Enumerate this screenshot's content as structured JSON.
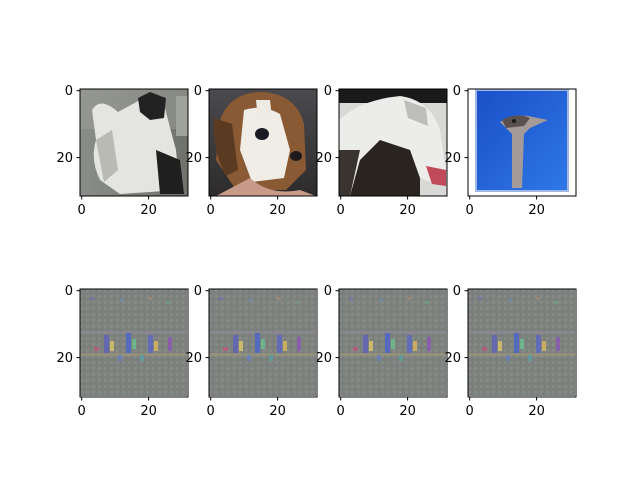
{
  "chart_data": [
    {
      "type": "heatmap",
      "row": 0,
      "col": 0,
      "image": "photo",
      "subject": "cat",
      "xticks": [
        0,
        20
      ],
      "yticks": [
        0,
        20
      ],
      "xlim": [
        -0.5,
        31.5
      ],
      "ylim": [
        31.5,
        -0.5
      ]
    },
    {
      "type": "heatmap",
      "row": 0,
      "col": 1,
      "image": "photo",
      "subject": "dog",
      "xticks": [
        0,
        20
      ],
      "yticks": [
        0,
        20
      ],
      "xlim": [
        -0.5,
        31.5
      ],
      "ylim": [
        31.5,
        -0.5
      ]
    },
    {
      "type": "heatmap",
      "row": 0,
      "col": 2,
      "image": "photo",
      "subject": "horse",
      "xticks": [
        0,
        20
      ],
      "yticks": [
        0,
        20
      ],
      "xlim": [
        -0.5,
        31.5
      ],
      "ylim": [
        31.5,
        -0.5
      ]
    },
    {
      "type": "heatmap",
      "row": 0,
      "col": 3,
      "image": "photo",
      "subject": "ostrich",
      "xticks": [
        0,
        20
      ],
      "yticks": [
        0,
        20
      ],
      "xlim": [
        -0.5,
        31.5
      ],
      "ylim": [
        31.5,
        -0.5
      ]
    },
    {
      "type": "heatmap",
      "row": 1,
      "col": 0,
      "image": "noise-pattern",
      "subject": "generated",
      "xticks": [
        0,
        20
      ],
      "yticks": [
        0,
        20
      ],
      "xlim": [
        -0.5,
        31.5
      ],
      "ylim": [
        31.5,
        -0.5
      ]
    },
    {
      "type": "heatmap",
      "row": 1,
      "col": 1,
      "image": "noise-pattern",
      "subject": "generated",
      "xticks": [
        0,
        20
      ],
      "yticks": [
        0,
        20
      ],
      "xlim": [
        -0.5,
        31.5
      ],
      "ylim": [
        31.5,
        -0.5
      ]
    },
    {
      "type": "heatmap",
      "row": 1,
      "col": 2,
      "image": "noise-pattern",
      "subject": "generated",
      "xticks": [
        0,
        20
      ],
      "yticks": [
        0,
        20
      ],
      "xlim": [
        -0.5,
        31.5
      ],
      "ylim": [
        31.5,
        -0.5
      ]
    },
    {
      "type": "heatmap",
      "row": 1,
      "col": 3,
      "image": "noise-pattern",
      "subject": "generated",
      "xticks": [
        0,
        20
      ],
      "yticks": [
        0,
        20
      ],
      "xlim": [
        -0.5,
        31.5
      ],
      "ylim": [
        31.5,
        -0.5
      ]
    }
  ],
  "colors": {
    "axes": "#000000",
    "background": "#ffffff",
    "noise_base": "#7f8580"
  }
}
